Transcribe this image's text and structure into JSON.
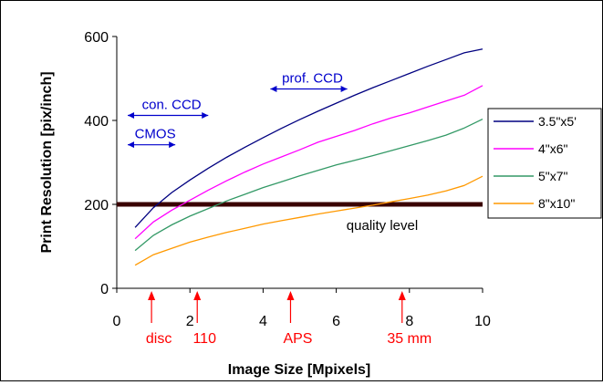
{
  "chart_data": {
    "type": "line",
    "xlabel": "Image Size [Mpixels]",
    "ylabel": "Print Resolution [pix/inch]",
    "xlim": [
      0,
      10
    ],
    "ylim": [
      0,
      600
    ],
    "xticks": [
      0,
      2,
      4,
      6,
      8,
      10
    ],
    "yticks": [
      0,
      200,
      400,
      600
    ],
    "grid": false,
    "legend_position": "right",
    "x": [
      0.5,
      1,
      1.5,
      2,
      2.5,
      3,
      3.5,
      4,
      4.5,
      5,
      5.5,
      6,
      6.5,
      7,
      7.5,
      8,
      8.5,
      9,
      9.5,
      10
    ],
    "series": [
      {
        "name": "3.5\"x5'",
        "color": "#000080",
        "values": [
          145,
          192,
          228,
          258,
          286,
          312,
          336,
          359,
          381,
          402,
          422,
          441,
          460,
          478,
          495,
          512,
          529,
          545,
          561,
          570
        ]
      },
      {
        "name": "4\"x6\"",
        "color": "#ff00ff",
        "values": [
          118,
          158,
          186,
          210,
          234,
          256,
          277,
          296,
          313,
          330,
          348,
          362,
          376,
          392,
          406,
          418,
          432,
          446,
          460,
          483
        ]
      },
      {
        "name": "5\"x7\"",
        "color": "#339966",
        "values": [
          90,
          126,
          151,
          172,
          190,
          208,
          224,
          240,
          254,
          268,
          281,
          294,
          305,
          316,
          328,
          340,
          352,
          365,
          382,
          403
        ]
      },
      {
        "name": "8\"x10\"",
        "color": "#ff9900",
        "values": [
          55,
          80,
          95,
          110,
          122,
          133,
          143,
          153,
          161,
          169,
          177,
          184,
          191,
          198,
          206,
          214,
          222,
          232,
          245,
          267
        ]
      }
    ],
    "threshold": {
      "value": 200,
      "label": "quality level",
      "color": "#3a0000"
    },
    "sensor_ranges": [
      {
        "label": "prof. CCD",
        "from": 4.2,
        "to": 6.3,
        "y": 475
      },
      {
        "label": "con. CCD",
        "from": 0.3,
        "to": 2.5,
        "y": 412
      },
      {
        "label": "CMOS",
        "from": 0.3,
        "to": 1.6,
        "y": 342
      }
    ],
    "formats": [
      {
        "label": "disc",
        "x": 0.95
      },
      {
        "label": "110",
        "x": 2.2
      },
      {
        "label": "APS",
        "x": 4.75
      },
      {
        "label": "35 mm",
        "x": 7.8
      }
    ]
  }
}
